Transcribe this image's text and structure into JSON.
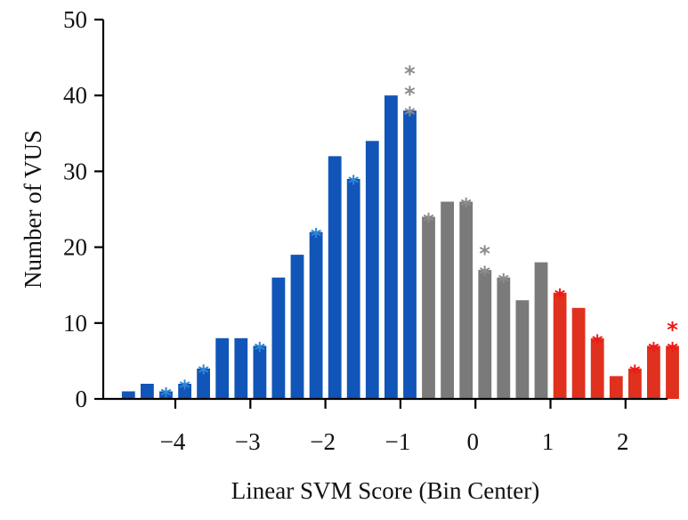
{
  "chart_data": {
    "type": "bar",
    "title": "",
    "xlabel": "Linear SVM Score (Bin Center)",
    "ylabel": "Number of VUS",
    "ylim": [
      0,
      50
    ],
    "xlim": [
      -4.75,
      2.5
    ],
    "y_ticks": [
      0,
      10,
      20,
      30,
      40,
      50
    ],
    "y_tick_labels": [
      "0",
      "10",
      "20",
      "30",
      "40",
      "50"
    ],
    "x_ticks": [
      -4,
      -3,
      -2,
      -1,
      0,
      1,
      2
    ],
    "x_tick_labels": [
      "−4",
      "−3",
      "−2",
      "−1",
      "0",
      "1",
      "2"
    ],
    "bin_width": 0.25,
    "grid": false,
    "colors": {
      "blue": "#1155b8",
      "gray": "#7a7a7a",
      "red": "#e0301e"
    },
    "star_colors": {
      "blue": "#2e86d6",
      "gray": "#8c8c8c",
      "red": "#f01818"
    },
    "annotation_symbol": "*",
    "bars": [
      {
        "x": -4.625,
        "value": 1,
        "group": "blue",
        "stars": 0
      },
      {
        "x": -4.375,
        "value": 2,
        "group": "blue",
        "stars": 0
      },
      {
        "x": -4.125,
        "value": 1,
        "group": "blue",
        "stars": 1
      },
      {
        "x": -3.875,
        "value": 2,
        "group": "blue",
        "stars": 1
      },
      {
        "x": -3.625,
        "value": 4,
        "group": "blue",
        "stars": 1
      },
      {
        "x": -3.375,
        "value": 8,
        "group": "blue",
        "stars": 0
      },
      {
        "x": -3.125,
        "value": 8,
        "group": "blue",
        "stars": 0
      },
      {
        "x": -2.875,
        "value": 7,
        "group": "blue",
        "stars": 1
      },
      {
        "x": -2.625,
        "value": 16,
        "group": "blue",
        "stars": 0
      },
      {
        "x": -2.375,
        "value": 19,
        "group": "blue",
        "stars": 0
      },
      {
        "x": -2.125,
        "value": 22,
        "group": "blue",
        "stars": 1
      },
      {
        "x": -1.875,
        "value": 32,
        "group": "blue",
        "stars": 0
      },
      {
        "x": -1.625,
        "value": 29,
        "group": "blue",
        "stars": 1
      },
      {
        "x": -1.375,
        "value": 34,
        "group": "blue",
        "stars": 0
      },
      {
        "x": -1.125,
        "value": 40,
        "group": "blue",
        "stars": 0
      },
      {
        "x": -0.875,
        "value": 38,
        "group": "blue",
        "stars": 3,
        "star_group": "gray"
      },
      {
        "x": -0.625,
        "value": 24,
        "group": "gray",
        "stars": 1
      },
      {
        "x": -0.375,
        "value": 26,
        "group": "gray",
        "stars": 0
      },
      {
        "x": -0.125,
        "value": 26,
        "group": "gray",
        "stars": 1
      },
      {
        "x": 0.125,
        "value": 17,
        "group": "gray",
        "stars": 2
      },
      {
        "x": 0.375,
        "value": 16,
        "group": "gray",
        "stars": 1
      },
      {
        "x": 0.625,
        "value": 13,
        "group": "gray",
        "stars": 0
      },
      {
        "x": 0.875,
        "value": 18,
        "group": "gray",
        "stars": 0
      },
      {
        "x": 1.125,
        "value": 14,
        "group": "red",
        "stars": 1
      },
      {
        "x": 1.375,
        "value": 12,
        "group": "red",
        "stars": 0
      },
      {
        "x": 1.625,
        "value": 8,
        "group": "red",
        "stars": 1
      },
      {
        "x": 1.875,
        "value": 3,
        "group": "red",
        "stars": 0
      },
      {
        "x": 2.125,
        "value": 4,
        "group": "red",
        "stars": 1
      },
      {
        "x": 2.375,
        "value": 7,
        "group": "red",
        "stars": 1
      },
      {
        "x": 2.625,
        "value": 7,
        "group": "red",
        "stars": 2
      }
    ]
  }
}
